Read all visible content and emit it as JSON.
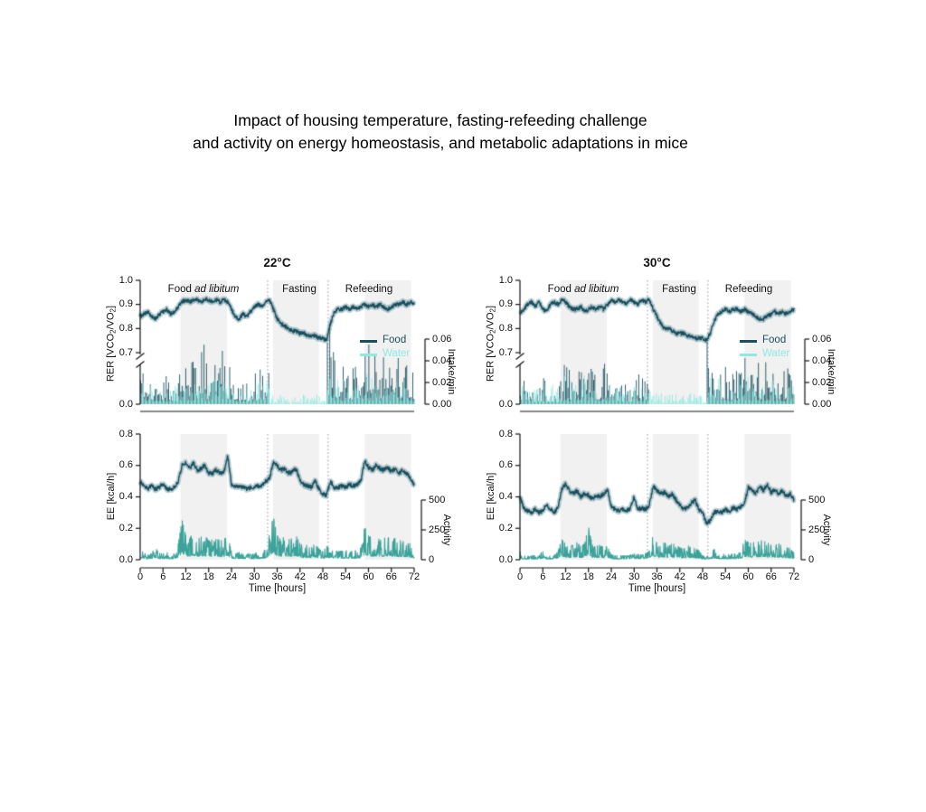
{
  "figure_title": {
    "line1": "Impact of housing temperature, fasting-refeeding challenge",
    "line2": "and activity on energy homeostasis, and metabolic adaptations in mice"
  },
  "ui": {
    "legend": {
      "food": "Food",
      "water": "Water"
    },
    "phases": {
      "food_prefix": "Food ",
      "food_italic": "ad libitum"
    },
    "rer_label_parts": {
      "p1": "RER [VCO",
      "s1": "2",
      "p2": "/VO",
      "s2": "2",
      "p3": "]"
    }
  },
  "colors": {
    "line": "#1a4f5e",
    "band": "rgba(26,95,112,0.30)",
    "food": "#1a4f5e",
    "water": "#8fe9e2",
    "activity": "#3ba39a",
    "dark_phase": "#f1f1f1",
    "event_line": "#909090",
    "axis": "#111111"
  },
  "chart_data": [
    {
      "id": "rer_intake_22c",
      "type": "line",
      "title": "22°C",
      "x_unit": "hours",
      "x_step": 1,
      "x_range": [
        0,
        72
      ],
      "annotations": [
        "Food ad libitum",
        "Fasting",
        "Refeeding"
      ],
      "dark_phases": [
        [
          10.6,
          22.8
        ],
        [
          34.9,
          47.0
        ],
        [
          59.0,
          71.2
        ]
      ],
      "event_lines": [
        33.5,
        49.4
      ],
      "rer_axis": {
        "label": "RER [VCO2/VO2]",
        "ticks": [
          1.0,
          0.9,
          0.8,
          0.7
        ],
        "break_to": 0.0
      },
      "intake_axis": {
        "label": "Intake/min",
        "ticks": [
          0.06,
          0.04,
          0.02,
          0
        ]
      },
      "rer": [
        0.85,
        0.86,
        0.87,
        0.85,
        0.84,
        0.86,
        0.87,
        0.88,
        0.86,
        0.87,
        0.89,
        0.91,
        0.92,
        0.91,
        0.92,
        0.92,
        0.91,
        0.92,
        0.92,
        0.91,
        0.92,
        0.91,
        0.92,
        0.91,
        0.88,
        0.85,
        0.84,
        0.86,
        0.85,
        0.87,
        0.89,
        0.9,
        0.89,
        0.91,
        0.92,
        0.88,
        0.84,
        0.82,
        0.81,
        0.8,
        0.79,
        0.79,
        0.78,
        0.78,
        0.77,
        0.77,
        0.77,
        0.76,
        0.76,
        0.75,
        0.82,
        0.87,
        0.88,
        0.88,
        0.89,
        0.88,
        0.89,
        0.88,
        0.89,
        0.9,
        0.89,
        0.9,
        0.89,
        0.9,
        0.89,
        0.88,
        0.89,
        0.9,
        0.9,
        0.91,
        0.9,
        0.91,
        0.9
      ],
      "food_intake": [
        0.03,
        0.02,
        0.025,
        0.02,
        0.015,
        0.02,
        0.03,
        0.02,
        0.025,
        0.02,
        0.035,
        0.05,
        0.045,
        0.04,
        0.05,
        0.045,
        0.055,
        0.04,
        0.05,
        0.045,
        0.04,
        0.05,
        0.045,
        0.04,
        0.03,
        0.02,
        0.025,
        0.03,
        0.02,
        0.025,
        0.03,
        0.035,
        0.03,
        0.04,
        0,
        0,
        0,
        0,
        0,
        0,
        0,
        0,
        0,
        0,
        0,
        0,
        0,
        0,
        0,
        0.07,
        0.06,
        0.045,
        0.04,
        0.045,
        0.04,
        0.035,
        0.04,
        0.045,
        0.055,
        0.055,
        0.05,
        0.045,
        0.05,
        0.045,
        0.05,
        0.04,
        0.045,
        0.05,
        0.045,
        0.04,
        0.045,
        0.04,
        0.03
      ],
      "water_intake": [
        0.02,
        0.015,
        0.018,
        0.012,
        0.015,
        0.018,
        0.02,
        0.015,
        0.018,
        0.015,
        0.022,
        0.028,
        0.025,
        0.022,
        0.028,
        0.025,
        0.03,
        0.022,
        0.028,
        0.025,
        0.022,
        0.028,
        0.025,
        0.022,
        0.018,
        0.015,
        0.018,
        0.02,
        0.015,
        0.018,
        0.02,
        0.022,
        0.018,
        0.022,
        0.01,
        0.008,
        0.01,
        0.008,
        0.009,
        0.008,
        0.01,
        0.008,
        0.009,
        0.008,
        0.01,
        0.008,
        0.009,
        0.008,
        0.01,
        0.03,
        0.028,
        0.025,
        0.022,
        0.025,
        0.022,
        0.02,
        0.022,
        0.025,
        0.028,
        0.028,
        0.025,
        0.022,
        0.025,
        0.022,
        0.025,
        0.022,
        0.022,
        0.025,
        0.022,
        0.02,
        0.022,
        0.02,
        0.018
      ]
    },
    {
      "id": "rer_intake_30c",
      "type": "line",
      "title": "30°C",
      "x_unit": "hours",
      "x_step": 1,
      "x_range": [
        0,
        72
      ],
      "annotations": [
        "Food ad libitum",
        "Fasting",
        "Refeeding"
      ],
      "dark_phases": [
        [
          10.6,
          22.8
        ],
        [
          34.9,
          47.0
        ],
        [
          59.0,
          71.2
        ]
      ],
      "event_lines": [
        33.5,
        49.4
      ],
      "rer_axis": {
        "label": "RER [VCO2/VO2]",
        "ticks": [
          1.0,
          0.9,
          0.8,
          0.7
        ],
        "break_to": 0.0
      },
      "intake_axis": {
        "label": "Intake/min",
        "ticks": [
          0.06,
          0.04,
          0.02,
          0
        ]
      },
      "rer": [
        0.86,
        0.88,
        0.9,
        0.91,
        0.89,
        0.91,
        0.88,
        0.87,
        0.9,
        0.91,
        0.9,
        0.92,
        0.91,
        0.89,
        0.88,
        0.88,
        0.89,
        0.87,
        0.88,
        0.89,
        0.88,
        0.89,
        0.88,
        0.9,
        0.92,
        0.91,
        0.92,
        0.91,
        0.9,
        0.92,
        0.91,
        0.9,
        0.92,
        0.91,
        0.92,
        0.88,
        0.85,
        0.82,
        0.8,
        0.8,
        0.79,
        0.78,
        0.78,
        0.78,
        0.77,
        0.77,
        0.76,
        0.76,
        0.76,
        0.75,
        0.78,
        0.83,
        0.86,
        0.87,
        0.88,
        0.87,
        0.88,
        0.88,
        0.87,
        0.88,
        0.87,
        0.86,
        0.85,
        0.84,
        0.84,
        0.85,
        0.86,
        0.87,
        0.86,
        0.87,
        0.86,
        0.87,
        0.88
      ],
      "food_intake": [
        0.025,
        0.015,
        0.02,
        0.015,
        0.012,
        0.018,
        0.025,
        0.018,
        0.02,
        0.015,
        0.03,
        0.04,
        0.038,
        0.035,
        0.04,
        0.038,
        0.045,
        0.035,
        0.06,
        0.038,
        0.035,
        0.042,
        0.038,
        0.035,
        0.025,
        0.018,
        0.02,
        0.025,
        0.018,
        0.02,
        0.025,
        0.03,
        0.04,
        0.035,
        0,
        0,
        0,
        0,
        0,
        0,
        0,
        0,
        0,
        0,
        0,
        0,
        0,
        0,
        0,
        0.065,
        0.055,
        0.04,
        0.035,
        0.04,
        0.035,
        0.03,
        0.035,
        0.04,
        0.045,
        0.045,
        0.04,
        0.038,
        0.042,
        0.038,
        0.042,
        0.035,
        0.038,
        0.042,
        0.038,
        0.035,
        0.04,
        0.035,
        0.028
      ],
      "water_intake": [
        0.022,
        0.016,
        0.018,
        0.014,
        0.016,
        0.018,
        0.022,
        0.016,
        0.018,
        0.016,
        0.024,
        0.026,
        0.024,
        0.022,
        0.026,
        0.024,
        0.028,
        0.022,
        0.026,
        0.024,
        0.022,
        0.026,
        0.024,
        0.022,
        0.018,
        0.016,
        0.018,
        0.02,
        0.016,
        0.018,
        0.02,
        0.022,
        0.018,
        0.022,
        0.012,
        0.01,
        0.012,
        0.01,
        0.011,
        0.01,
        0.012,
        0.01,
        0.011,
        0.01,
        0.012,
        0.01,
        0.011,
        0.01,
        0.012,
        0.028,
        0.026,
        0.024,
        0.022,
        0.024,
        0.022,
        0.02,
        0.022,
        0.024,
        0.026,
        0.026,
        0.024,
        0.022,
        0.024,
        0.022,
        0.024,
        0.022,
        0.022,
        0.024,
        0.022,
        0.02,
        0.022,
        0.02,
        0.018
      ]
    },
    {
      "id": "ee_activity_22c",
      "type": "line",
      "title": "22°C",
      "x_unit": "hours",
      "x_step": 1,
      "x_range": [
        0,
        72
      ],
      "xlabel": "Time [hours]",
      "x_ticks": [
        0,
        6,
        12,
        18,
        24,
        30,
        36,
        42,
        48,
        54,
        60,
        66,
        72
      ],
      "dark_phases": [
        [
          10.6,
          22.8
        ],
        [
          34.9,
          47.0
        ],
        [
          59.0,
          71.2
        ]
      ],
      "event_lines": [
        33.5,
        49.4
      ],
      "ee_axis": {
        "label": "EE [kcal/h]",
        "ticks": [
          0.8,
          0.6,
          0.4,
          0.2,
          0
        ]
      },
      "activity_axis": {
        "label": "Activity",
        "ticks": [
          500,
          250,
          0
        ]
      },
      "ee": [
        0.5,
        0.47,
        0.45,
        0.47,
        0.45,
        0.46,
        0.48,
        0.45,
        0.45,
        0.46,
        0.5,
        0.6,
        0.62,
        0.58,
        0.62,
        0.57,
        0.58,
        0.6,
        0.55,
        0.55,
        0.57,
        0.55,
        0.56,
        0.66,
        0.48,
        0.47,
        0.47,
        0.46,
        0.45,
        0.46,
        0.46,
        0.47,
        0.47,
        0.5,
        0.52,
        0.62,
        0.6,
        0.57,
        0.58,
        0.55,
        0.56,
        0.58,
        0.5,
        0.48,
        0.47,
        0.46,
        0.5,
        0.45,
        0.42,
        0.41,
        0.5,
        0.46,
        0.46,
        0.47,
        0.46,
        0.48,
        0.47,
        0.48,
        0.5,
        0.63,
        0.59,
        0.57,
        0.6,
        0.58,
        0.57,
        0.59,
        0.56,
        0.58,
        0.55,
        0.57,
        0.55,
        0.52,
        0.48
      ],
      "activity": [
        80,
        50,
        40,
        60,
        90,
        50,
        45,
        55,
        40,
        45,
        120,
        300,
        180,
        160,
        200,
        150,
        170,
        180,
        140,
        150,
        160,
        140,
        150,
        180,
        60,
        50,
        55,
        45,
        50,
        40,
        45,
        55,
        50,
        80,
        200,
        320,
        180,
        160,
        170,
        150,
        160,
        180,
        120,
        100,
        110,
        90,
        120,
        80,
        60,
        100,
        80,
        70,
        60,
        65,
        70,
        60,
        65,
        70,
        90,
        250,
        180,
        160,
        170,
        150,
        160,
        170,
        150,
        160,
        140,
        150,
        130,
        120,
        60
      ]
    },
    {
      "id": "ee_activity_30c",
      "type": "line",
      "title": "30°C",
      "x_unit": "hours",
      "x_step": 1,
      "x_range": [
        0,
        72
      ],
      "xlabel": "Time [hours]",
      "x_ticks": [
        0,
        6,
        12,
        18,
        24,
        30,
        36,
        42,
        48,
        54,
        60,
        66,
        72
      ],
      "dark_phases": [
        [
          10.6,
          22.8
        ],
        [
          34.9,
          47.0
        ],
        [
          59.0,
          71.2
        ]
      ],
      "event_lines": [
        33.5,
        49.4
      ],
      "ee_axis": {
        "label": "EE [kcal/h]",
        "ticks": [
          0.8,
          0.6,
          0.4,
          0.2,
          0
        ]
      },
      "activity_axis": {
        "label": "Activity",
        "ticks": [
          500,
          250,
          0
        ]
      },
      "ee": [
        0.4,
        0.33,
        0.31,
        0.3,
        0.32,
        0.3,
        0.31,
        0.35,
        0.32,
        0.3,
        0.33,
        0.45,
        0.48,
        0.44,
        0.42,
        0.44,
        0.4,
        0.42,
        0.41,
        0.39,
        0.41,
        0.4,
        0.42,
        0.45,
        0.34,
        0.32,
        0.31,
        0.32,
        0.31,
        0.33,
        0.4,
        0.32,
        0.33,
        0.32,
        0.35,
        0.47,
        0.44,
        0.42,
        0.43,
        0.4,
        0.42,
        0.38,
        0.35,
        0.32,
        0.33,
        0.36,
        0.38,
        0.32,
        0.3,
        0.23,
        0.25,
        0.3,
        0.31,
        0.3,
        0.32,
        0.31,
        0.33,
        0.32,
        0.34,
        0.36,
        0.46,
        0.44,
        0.42,
        0.47,
        0.44,
        0.48,
        0.43,
        0.44,
        0.42,
        0.44,
        0.4,
        0.42,
        0.38
      ],
      "activity": [
        60,
        30,
        25,
        35,
        30,
        28,
        70,
        30,
        28,
        30,
        80,
        150,
        120,
        100,
        110,
        130,
        100,
        120,
        250,
        110,
        100,
        110,
        90,
        100,
        40,
        30,
        35,
        30,
        28,
        35,
        60,
        40,
        35,
        45,
        100,
        180,
        120,
        110,
        130,
        100,
        120,
        110,
        90,
        80,
        100,
        110,
        80,
        70,
        30,
        25,
        40,
        80,
        50,
        40,
        45,
        40,
        42,
        45,
        60,
        150,
        130,
        120,
        140,
        130,
        160,
        120,
        130,
        110,
        120,
        100,
        90,
        85,
        50
      ]
    }
  ]
}
